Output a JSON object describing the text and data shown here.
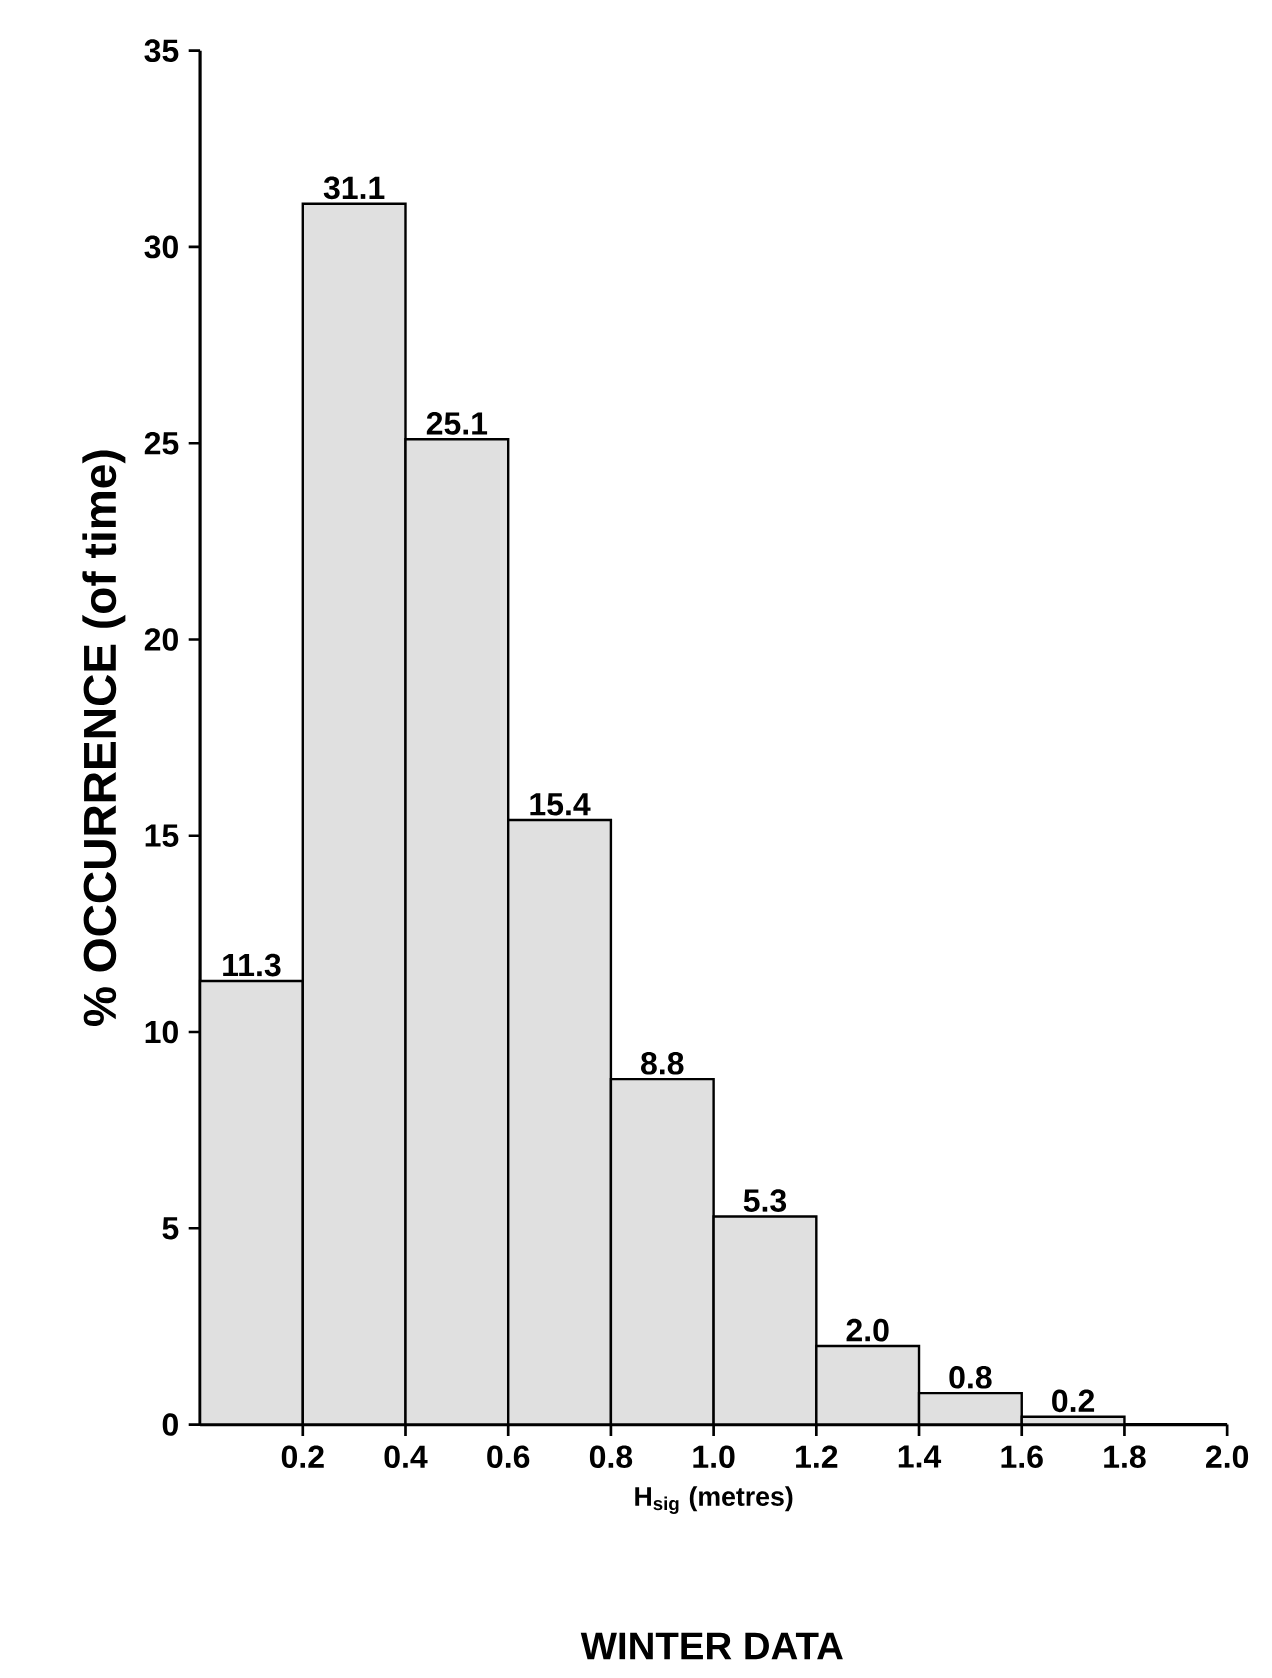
{
  "chart_data": {
    "type": "histogram",
    "title": "WINTER DATA",
    "xlabel": "H$_{sig}$ (metres)",
    "ylabel": "% OCCURRENCE (of time)",
    "bins": [
      0,
      0.2,
      0.4,
      0.6,
      0.8,
      1.0,
      1.2,
      1.4,
      1.6,
      1.8
    ],
    "values": [
      11.3,
      31.1,
      25.1,
      15.4,
      8.8,
      5.3,
      2.0,
      0.8,
      0.2
    ],
    "value_labels": [
      "11.3",
      "31.1",
      "25.1",
      "15.4",
      "8.8",
      "5.3",
      "2.0",
      "0.8",
      "0.2"
    ],
    "color": "#e0e0e0",
    "xlim": [
      0,
      2.0
    ],
    "xticks": [
      {
        "value": 0.2,
        "label": "0.2"
      },
      {
        "value": 0.4,
        "label": "0.4"
      },
      {
        "value": 0.6,
        "label": "0.6"
      },
      {
        "value": 0.8,
        "label": "0.8"
      },
      {
        "value": 1.0,
        "label": "1.0"
      },
      {
        "value": 1.2,
        "label": "1.2"
      },
      {
        "value": 1.4,
        "label": "1.4"
      },
      {
        "value": 1.6,
        "label": "1.6"
      },
      {
        "value": 1.8,
        "label": "1.8"
      },
      {
        "value": 2.0,
        "label": "2.0"
      }
    ],
    "ylim": [
      0,
      35
    ],
    "yticks": [
      0,
      5,
      10,
      15,
      20,
      25,
      30,
      35
    ]
  }
}
